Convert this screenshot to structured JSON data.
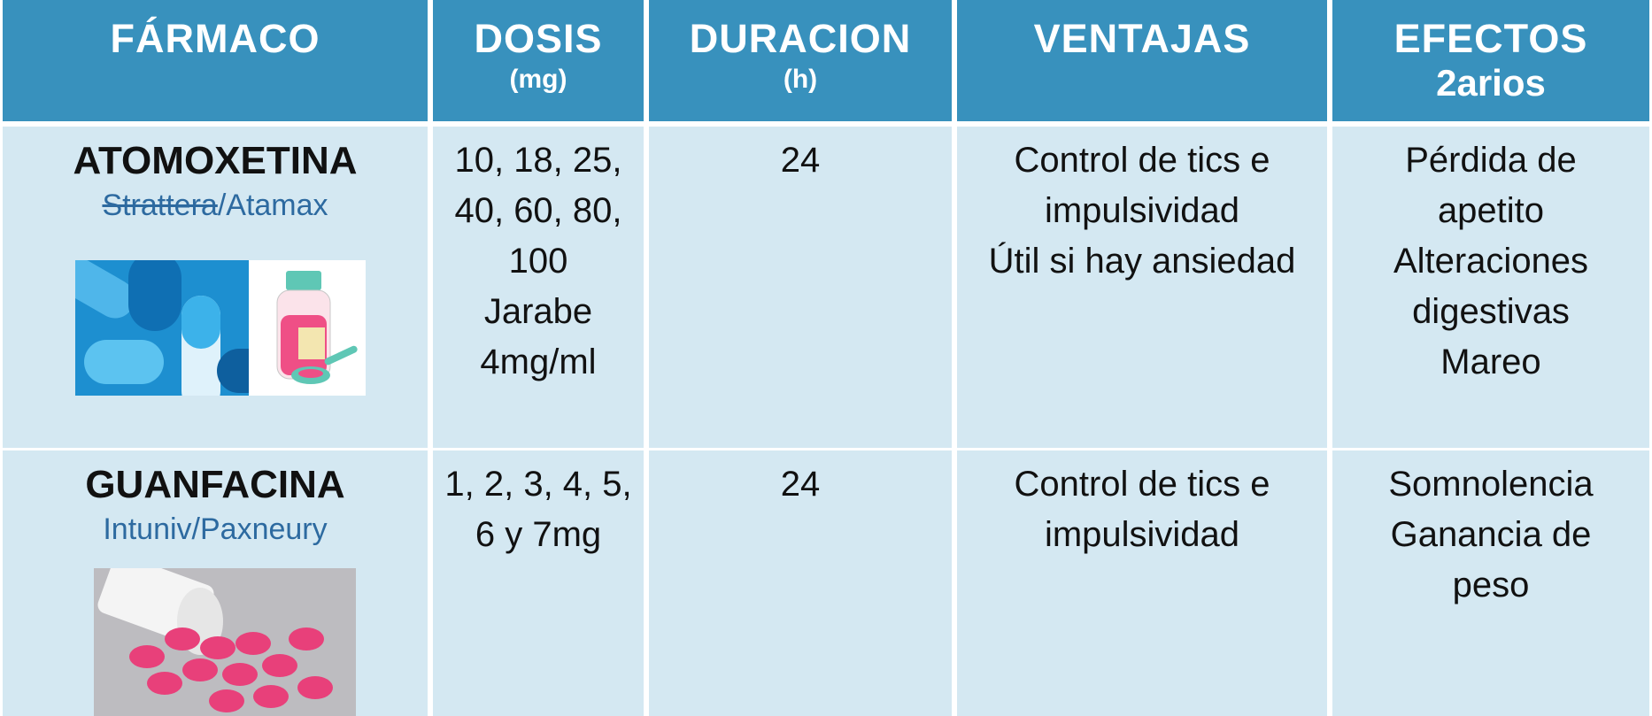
{
  "table": {
    "header": [
      {
        "title": "FÁRMACO"
      },
      {
        "title": "DOSIS",
        "sub": "(mg)"
      },
      {
        "title": "DURACION",
        "sub": "(h)"
      },
      {
        "title": "VENTAJAS"
      },
      {
        "title": "EFECTOS",
        "sub": "2arios"
      }
    ],
    "rows": [
      {
        "drug": "ATOMOXETINA",
        "brand_struck": "Strattera",
        "brand": "/Atamax",
        "dose": [
          "10, 18, 25,",
          "40, 60, 80,",
          "100",
          "Jarabe",
          "4mg/ml"
        ],
        "duration": "24",
        "advantages": [
          "Control de tics e",
          "impulsividad",
          "Útil si hay ansiedad"
        ],
        "effects": [
          "Pérdida de",
          "apetito",
          "Alteraciones",
          "digestivas",
          "Mareo"
        ]
      },
      {
        "drug": "GUANFACINA",
        "brand": "Intuniv/Paxneury",
        "dose": [
          "1, 2, 3, 4, 5,",
          "6 y 7mg"
        ],
        "duration": "24",
        "advantages": [
          "Control de tics e",
          "impulsividad"
        ],
        "effects": [
          "Somnolencia",
          "Ganancia de",
          "peso"
        ]
      }
    ]
  }
}
